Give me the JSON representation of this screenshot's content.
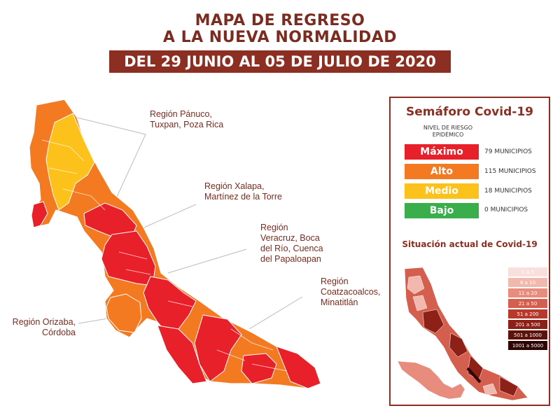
{
  "header": {
    "title_line1": "MAPA DE REGRESO",
    "title_line2": "A LA NUEVA NORMALIDAD",
    "date_range": "DEL 29 JUNIO AL 05 DE JULIO DE 2020"
  },
  "regions": [
    {
      "id": "panuco",
      "lines": [
        "Región Pánuco,",
        "Tuxpan, Poza Rica"
      ]
    },
    {
      "id": "xalapa",
      "lines": [
        "Región Xalapa,",
        "Martínez de la Torre"
      ]
    },
    {
      "id": "veracruz",
      "lines": [
        "Región",
        "Veracruz, Boca",
        "del Río, Cuenca",
        "del Papaloapan"
      ]
    },
    {
      "id": "coatza",
      "lines": [
        "Región",
        "Coatzacoalcos,",
        "Minatitlán"
      ]
    },
    {
      "id": "orizaba",
      "lines": [
        "Región Orizaba,",
        "Córdoba"
      ]
    }
  ],
  "legend": {
    "title": "Semáforo Covid-19",
    "subtitle": "NIVEL DE RIESGO EPIDÉMICO",
    "levels": [
      {
        "label": "Máximo",
        "count": "79 MUNICIPIOS",
        "color": "#e8202a"
      },
      {
        "label": "Alto",
        "count": "115 MUNICIPIOS",
        "color": "#f47a22"
      },
      {
        "label": "Medio",
        "count": "18 MUNICIPIOS",
        "color": "#fcc21b"
      },
      {
        "label": "Bajo",
        "count": "0 MUNICIPIOS",
        "color": "#3aae4a"
      }
    ]
  },
  "situation": {
    "title": "Situación actual de Covid-19",
    "scale": [
      {
        "label": "1 a 5",
        "color": "#f9e0dc"
      },
      {
        "label": "6 a 10",
        "color": "#f2b8ae"
      },
      {
        "label": "11 a 20",
        "color": "#e88c7e"
      },
      {
        "label": "21 a 50",
        "color": "#d45f4e"
      },
      {
        "label": "51 a 200",
        "color": "#b8392b"
      },
      {
        "label": "201 a 500",
        "color": "#8e2117"
      },
      {
        "label": "501 a 1000",
        "color": "#5e120c"
      },
      {
        "label": "1001 a 5000",
        "color": "#2e0705"
      }
    ]
  },
  "colors": {
    "maximo": "#e8202a",
    "alto": "#f47a22",
    "medio": "#fcc21b",
    "bajo": "#3aae4a",
    "brand": "#8c2f22"
  }
}
